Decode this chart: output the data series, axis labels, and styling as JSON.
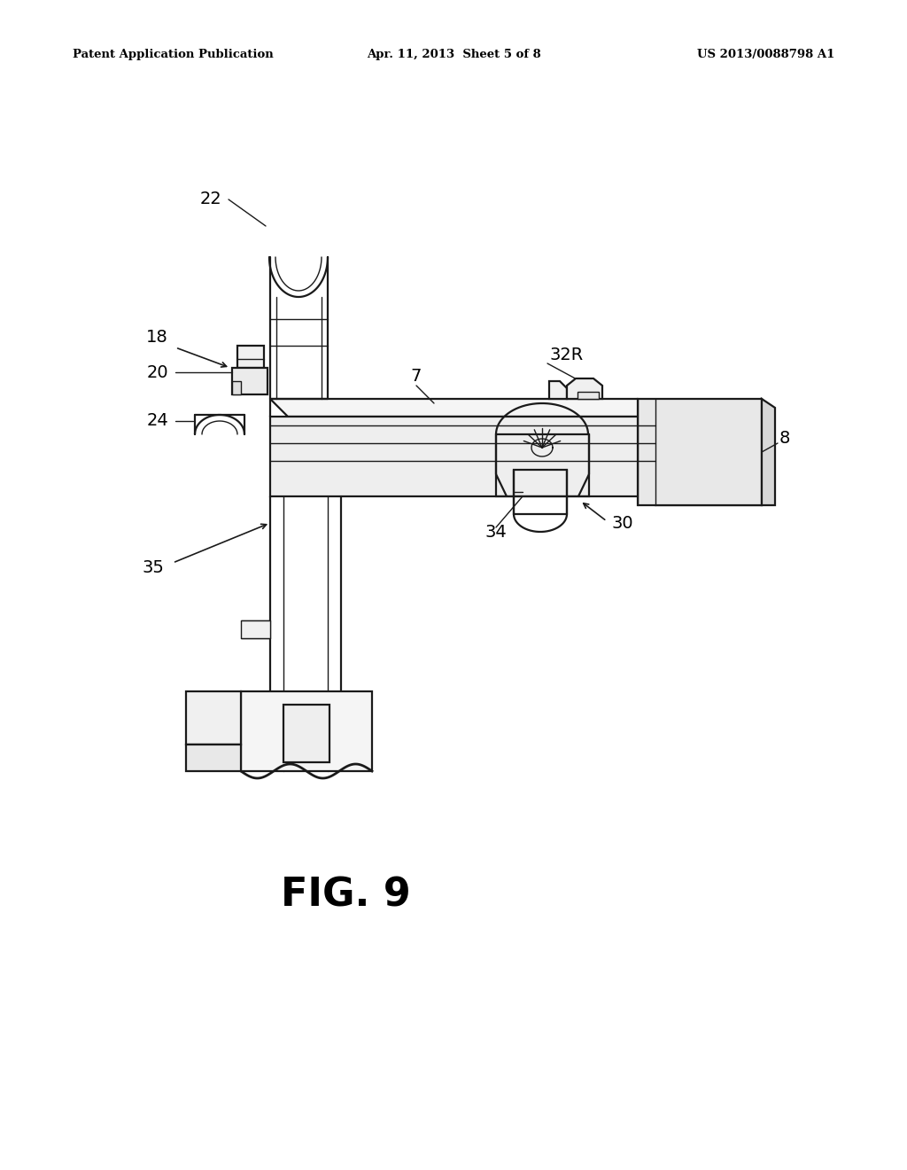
{
  "bg_color": "#ffffff",
  "header_left": "Patent Application Publication",
  "header_center": "Apr. 11, 2013  Sheet 5 of 8",
  "header_right": "US 2013/0088798 A1",
  "fig_label": "FIG. 9",
  "line_color": "#1a1a1a",
  "lw_main": 1.6,
  "lw_thin": 1.0,
  "lw_thick": 2.0
}
